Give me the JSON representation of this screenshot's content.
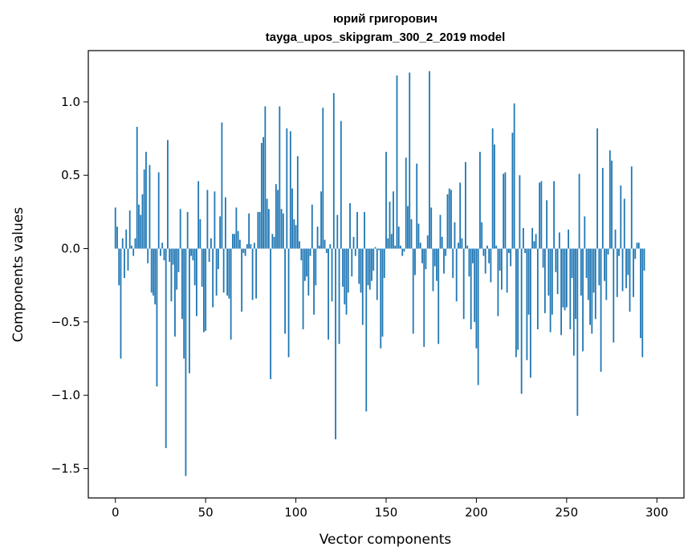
{
  "chart_data": {
    "type": "bar",
    "title": "юрий григорович",
    "subtitle": "tayga_upos_skipgram_300_2_2019 model",
    "xlabel": "Vector components",
    "ylabel": "Components values",
    "xlim": [
      -15,
      315
    ],
    "ylim": [
      -1.7,
      1.35
    ],
    "xticks": [
      0,
      50,
      100,
      150,
      200,
      250,
      300
    ],
    "yticks": [
      -1.5,
      -1.0,
      -0.5,
      0.0,
      0.5,
      1.0
    ],
    "ytick_labels": [
      "−1.5",
      "−1.0",
      "−0.5",
      "0.0",
      "0.5",
      "1.0"
    ],
    "grid": false,
    "color": "#1f77b4",
    "values": [
      0.28,
      0.15,
      -0.25,
      -0.75,
      0.07,
      -0.2,
      0.13,
      -0.15,
      0.26,
      0.02,
      -0.05,
      0.07,
      0.83,
      0.3,
      0.23,
      0.37,
      0.54,
      0.66,
      -0.1,
      0.57,
      -0.3,
      -0.32,
      -0.38,
      -0.94,
      0.52,
      -0.05,
      0.04,
      -0.08,
      -1.36,
      0.74,
      -0.09,
      -0.36,
      -0.11,
      -0.6,
      -0.28,
      -0.16,
      0.27,
      -0.48,
      -0.75,
      -1.55,
      0.25,
      -0.85,
      -0.05,
      -0.08,
      -0.25,
      -0.46,
      0.46,
      0.2,
      -0.26,
      -0.57,
      -0.56,
      0.4,
      -0.09,
      0.07,
      -0.4,
      0.39,
      -0.32,
      -0.14,
      0.22,
      0.86,
      -0.3,
      0.35,
      -0.32,
      -0.34,
      -0.62,
      0.1,
      0.1,
      0.28,
      0.12,
      0.06,
      -0.43,
      -0.03,
      -0.05,
      0.03,
      0.24,
      0.03,
      -0.35,
      0.04,
      -0.34,
      0.25,
      0.25,
      0.72,
      0.76,
      0.97,
      0.34,
      0.27,
      -0.89,
      0.1,
      0.08,
      0.44,
      0.4,
      0.97,
      0.27,
      0.24,
      -0.58,
      0.82,
      -0.74,
      0.8,
      0.41,
      0.2,
      0.16,
      0.63,
      0.05,
      -0.08,
      -0.55,
      -0.22,
      -0.19,
      -0.32,
      -0.05,
      0.3,
      -0.45,
      -0.25,
      0.15,
      0.02,
      0.39,
      0.96,
      0.06,
      -0.03,
      -0.62,
      0.03,
      -0.36,
      1.06,
      -1.3,
      0.23,
      -0.65,
      0.87,
      -0.26,
      -0.38,
      -0.45,
      -0.3,
      0.31,
      -0.19,
      0.08,
      -0.05,
      0.25,
      -0.24,
      -0.3,
      -0.52,
      0.25,
      -1.11,
      -0.25,
      -0.28,
      -0.22,
      -0.15,
      0.01,
      -0.35,
      -0.01,
      -0.68,
      -0.6,
      -0.2,
      0.66,
      0.07,
      0.32,
      0.1,
      0.39,
      0.02,
      1.18,
      0.15,
      0.02,
      -0.05,
      -0.02,
      0.62,
      0.29,
      1.2,
      0.2,
      -0.58,
      -0.18,
      0.58,
      0.17,
      0.04,
      -0.1,
      -0.67,
      -0.14,
      0.09,
      1.21,
      0.28,
      -0.29,
      -0.12,
      -0.22,
      -0.65,
      0.23,
      0.08,
      -0.17,
      -0.05,
      0.37,
      0.41,
      0.4,
      -0.2,
      0.18,
      -0.36,
      0.04,
      0.45,
      0.07,
      -0.48,
      0.59,
      0.02,
      -0.19,
      -0.55,
      -0.1,
      -0.5,
      -0.68,
      -0.93,
      0.66,
      0.18,
      -0.05,
      -0.17,
      0.02,
      -0.1,
      -0.23,
      0.82,
      0.71,
      0.02,
      -0.46,
      -0.15,
      -0.28,
      0.51,
      0.52,
      -0.3,
      -0.03,
      -0.12,
      0.79,
      0.99,
      -0.74,
      -0.69,
      0.5,
      -0.99,
      0.14,
      -0.03,
      -0.76,
      -0.45,
      -0.88,
      0.14,
      0.05,
      0.1,
      -0.55,
      0.45,
      0.46,
      -0.13,
      -0.44,
      0.33,
      -0.32,
      -0.57,
      -0.45,
      0.46,
      -0.16,
      -0.31,
      0.11,
      -0.59,
      -0.4,
      -0.42,
      -0.4,
      0.13,
      -0.55,
      -0.2,
      -0.73,
      -0.48,
      -1.14,
      0.51,
      -0.32,
      -0.7,
      0.22,
      -0.2,
      -0.35,
      -0.52,
      -0.58,
      -0.3,
      -0.48,
      0.82,
      -0.25,
      -0.84,
      0.55,
      -0.22,
      -0.35,
      -0.04,
      0.67,
      0.6,
      -0.64,
      0.13,
      -0.33,
      -0.05,
      0.43,
      -0.29,
      0.34,
      -0.27,
      -0.18,
      -0.43,
      0.56,
      -0.33,
      -0.07,
      0.04,
      0.04,
      -0.61,
      -0.74,
      -0.15
    ]
  }
}
